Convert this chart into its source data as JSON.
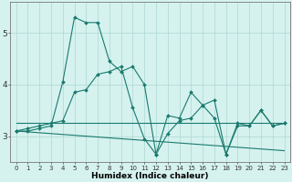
{
  "xlabel": "Humidex (Indice chaleur)",
  "x": [
    0,
    1,
    2,
    3,
    4,
    5,
    6,
    7,
    8,
    9,
    10,
    11,
    12,
    13,
    14,
    15,
    16,
    17,
    18,
    19,
    20,
    21,
    22,
    23
  ],
  "line1": [
    3.1,
    3.1,
    3.15,
    3.2,
    4.05,
    5.3,
    5.2,
    5.2,
    4.45,
    4.25,
    4.35,
    4.0,
    2.65,
    3.4,
    3.35,
    3.85,
    3.6,
    3.7,
    2.65,
    3.25,
    3.2,
    3.5,
    3.2,
    3.25
  ],
  "line2": [
    3.1,
    3.15,
    3.2,
    3.25,
    3.3,
    3.85,
    3.9,
    4.2,
    4.25,
    4.35,
    3.55,
    2.95,
    2.65,
    3.05,
    3.3,
    3.35,
    3.6,
    3.35,
    2.65,
    3.2,
    3.2,
    3.5,
    3.2,
    3.25
  ],
  "trend_flat_y0": 3.25,
  "trend_flat_y1": 3.25,
  "trend_down_y0": 3.1,
  "trend_down_y1": 2.72,
  "line_color": "#1a7a6e",
  "bg_color": "#d5f2ef",
  "grid_color": "#aed8d4",
  "ylim": [
    2.5,
    5.6
  ],
  "yticks": [
    3,
    4,
    5
  ],
  "xlim": [
    -0.5,
    23.5
  ]
}
